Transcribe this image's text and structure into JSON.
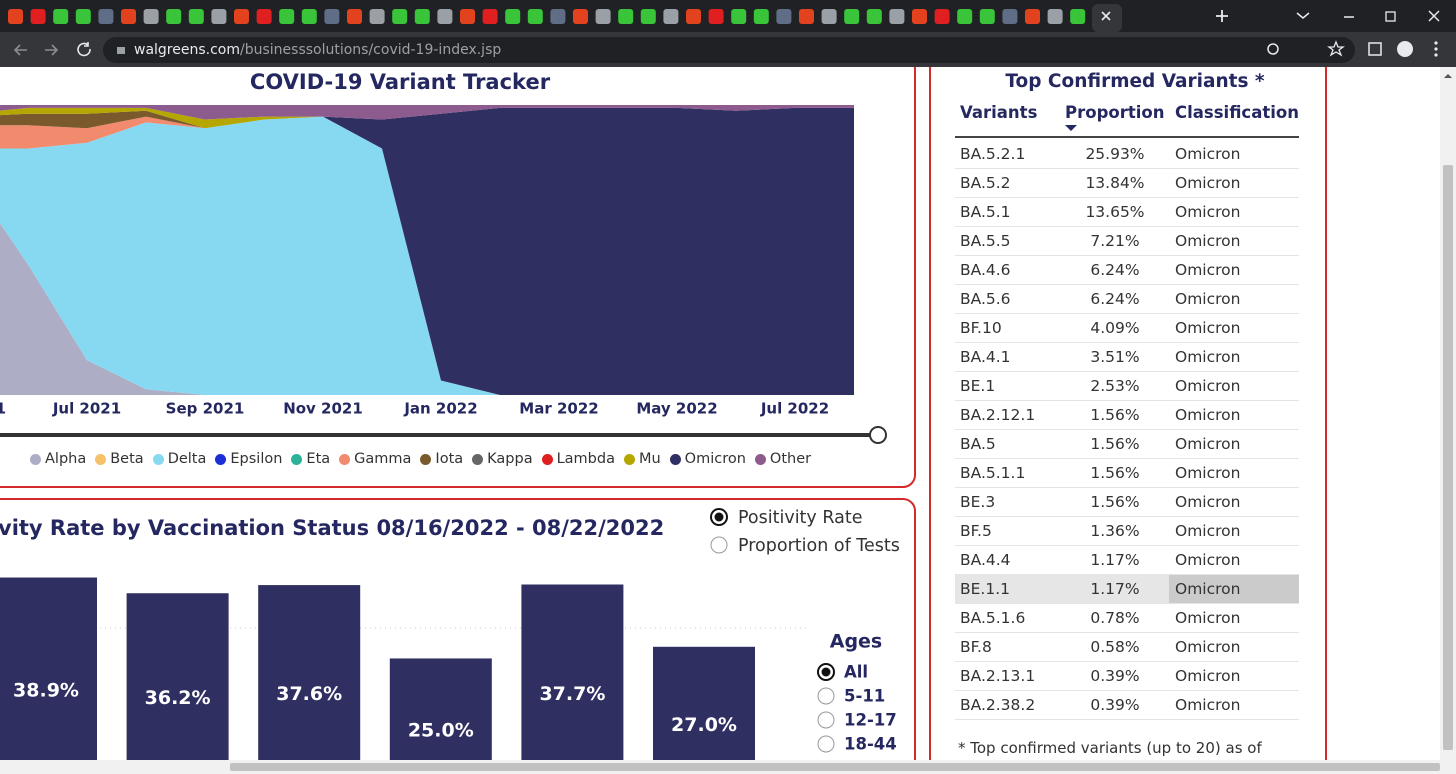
{
  "browser": {
    "url_host": "walgreens.com",
    "url_path": "/businesssolutions/covid-19-index.jsp"
  },
  "variant_chart": {
    "type": "area",
    "title": "COVID-19 Variant Tracker",
    "categories": [
      "1",
      null,
      "Jul 2021",
      null,
      "Sep 2021",
      null,
      "Nov 2021",
      null,
      "Jan 2022",
      null,
      "Mar 2022",
      null,
      "May 2022",
      null,
      "Jul 2022",
      null
    ],
    "ylim": [
      0,
      100
    ],
    "series": [
      {
        "name": "Alpha",
        "color": "#adadc6",
        "values": [
          75,
          45,
          12,
          2,
          0,
          0,
          0,
          0,
          0,
          0,
          0,
          0,
          0,
          0,
          0,
          0
        ]
      },
      {
        "name": "Delta",
        "color": "#87d9f2",
        "values": [
          10,
          40,
          75,
          92,
          92,
          95,
          96,
          85,
          5,
          0,
          0,
          0,
          0,
          0,
          0,
          0
        ]
      },
      {
        "name": "Omicron",
        "color": "#2f2f62",
        "values": [
          0,
          0,
          0,
          0,
          0,
          0,
          0,
          10,
          92,
          99,
          99,
          99,
          99,
          98,
          99,
          99
        ]
      },
      {
        "name": "Gamma",
        "color": "#f28a6e",
        "values": [
          8,
          8,
          5,
          2,
          0,
          0,
          0,
          0,
          0,
          0,
          0,
          0,
          0,
          0,
          0,
          0
        ]
      },
      {
        "name": "Iota",
        "color": "#7a5a2c",
        "values": [
          3,
          4,
          5,
          2,
          0,
          0,
          0,
          0,
          0,
          0,
          0,
          0,
          0,
          0,
          0,
          0
        ]
      },
      {
        "name": "Mu",
        "color": "#b5a600",
        "values": [
          1,
          2,
          2,
          1,
          3,
          1,
          0,
          0,
          0,
          0,
          0,
          0,
          0,
          0,
          0,
          0
        ]
      },
      {
        "name": "Other",
        "color": "#8d5b8e",
        "values": [
          3,
          1,
          1,
          1,
          5,
          4,
          4,
          5,
          3,
          1,
          1,
          1,
          1,
          2,
          1,
          1
        ]
      }
    ],
    "legend": [
      {
        "name": "Alpha",
        "color": "#adadc6"
      },
      {
        "name": "Beta",
        "color": "#f5c26b"
      },
      {
        "name": "Delta",
        "color": "#87d9f2"
      },
      {
        "name": "Epsilon",
        "color": "#1a2fd6"
      },
      {
        "name": "Eta",
        "color": "#2bb39a"
      },
      {
        "name": "Gamma",
        "color": "#f28a6e"
      },
      {
        "name": "Iota",
        "color": "#7a5a2c"
      },
      {
        "name": "Kappa",
        "color": "#666666"
      },
      {
        "name": "Lambda",
        "color": "#e02020"
      },
      {
        "name": "Mu",
        "color": "#b5a600"
      },
      {
        "name": "Omicron",
        "color": "#2f2f62"
      },
      {
        "name": "Other",
        "color": "#8d5b8e"
      }
    ]
  },
  "positivity_chart": {
    "type": "bar",
    "title": "vity Rate by Vaccination Status 08/16/2022 - 08/22/2022",
    "color": "#2f2f62",
    "ylim": [
      0,
      45
    ],
    "values": [
      38.9,
      36.2,
      37.6,
      25.0,
      37.7,
      27.0
    ],
    "value_labels": [
      "38.9%",
      "36.2%",
      "37.6%",
      "25.0%",
      "37.7%",
      "27.0%"
    ],
    "measure_options": [
      {
        "label": "Positivity Rate",
        "selected": true
      },
      {
        "label": "Proportion of Tests",
        "selected": false
      }
    ],
    "ages_title": "Ages",
    "age_options": [
      {
        "label": "All",
        "selected": true
      },
      {
        "label": "5-11",
        "selected": false
      },
      {
        "label": "12-17",
        "selected": false
      },
      {
        "label": "18-44",
        "selected": false
      }
    ]
  },
  "table": {
    "title": "Top Confirmed Variants *",
    "headers": [
      "Variants",
      "Proportion",
      "Classification"
    ],
    "rows": [
      [
        "BA.5.2.1",
        "25.93%",
        "Omicron"
      ],
      [
        "BA.5.2",
        "13.84%",
        "Omicron"
      ],
      [
        "BA.5.1",
        "13.65%",
        "Omicron"
      ],
      [
        "BA.5.5",
        "7.21%",
        "Omicron"
      ],
      [
        "BA.4.6",
        "6.24%",
        "Omicron"
      ],
      [
        "BA.5.6",
        "6.24%",
        "Omicron"
      ],
      [
        "BF.10",
        "4.09%",
        "Omicron"
      ],
      [
        "BA.4.1",
        "3.51%",
        "Omicron"
      ],
      [
        "BE.1",
        "2.53%",
        "Omicron"
      ],
      [
        "BA.2.12.1",
        "1.56%",
        "Omicron"
      ],
      [
        "BA.5",
        "1.56%",
        "Omicron"
      ],
      [
        "BA.5.1.1",
        "1.56%",
        "Omicron"
      ],
      [
        "BE.3",
        "1.56%",
        "Omicron"
      ],
      [
        "BF.5",
        "1.36%",
        "Omicron"
      ],
      [
        "BA.4.4",
        "1.17%",
        "Omicron"
      ],
      [
        "BE.1.1",
        "1.17%",
        "Omicron"
      ],
      [
        "BA.5.1.6",
        "0.78%",
        "Omicron"
      ],
      [
        "BF.8",
        "0.58%",
        "Omicron"
      ],
      [
        "BA.2.13.1",
        "0.39%",
        "Omicron"
      ],
      [
        "BA.2.38.2",
        "0.39%",
        "Omicron"
      ]
    ],
    "highlighted_row": 15,
    "footnote": "* Top confirmed variants (up to 20) as of"
  }
}
